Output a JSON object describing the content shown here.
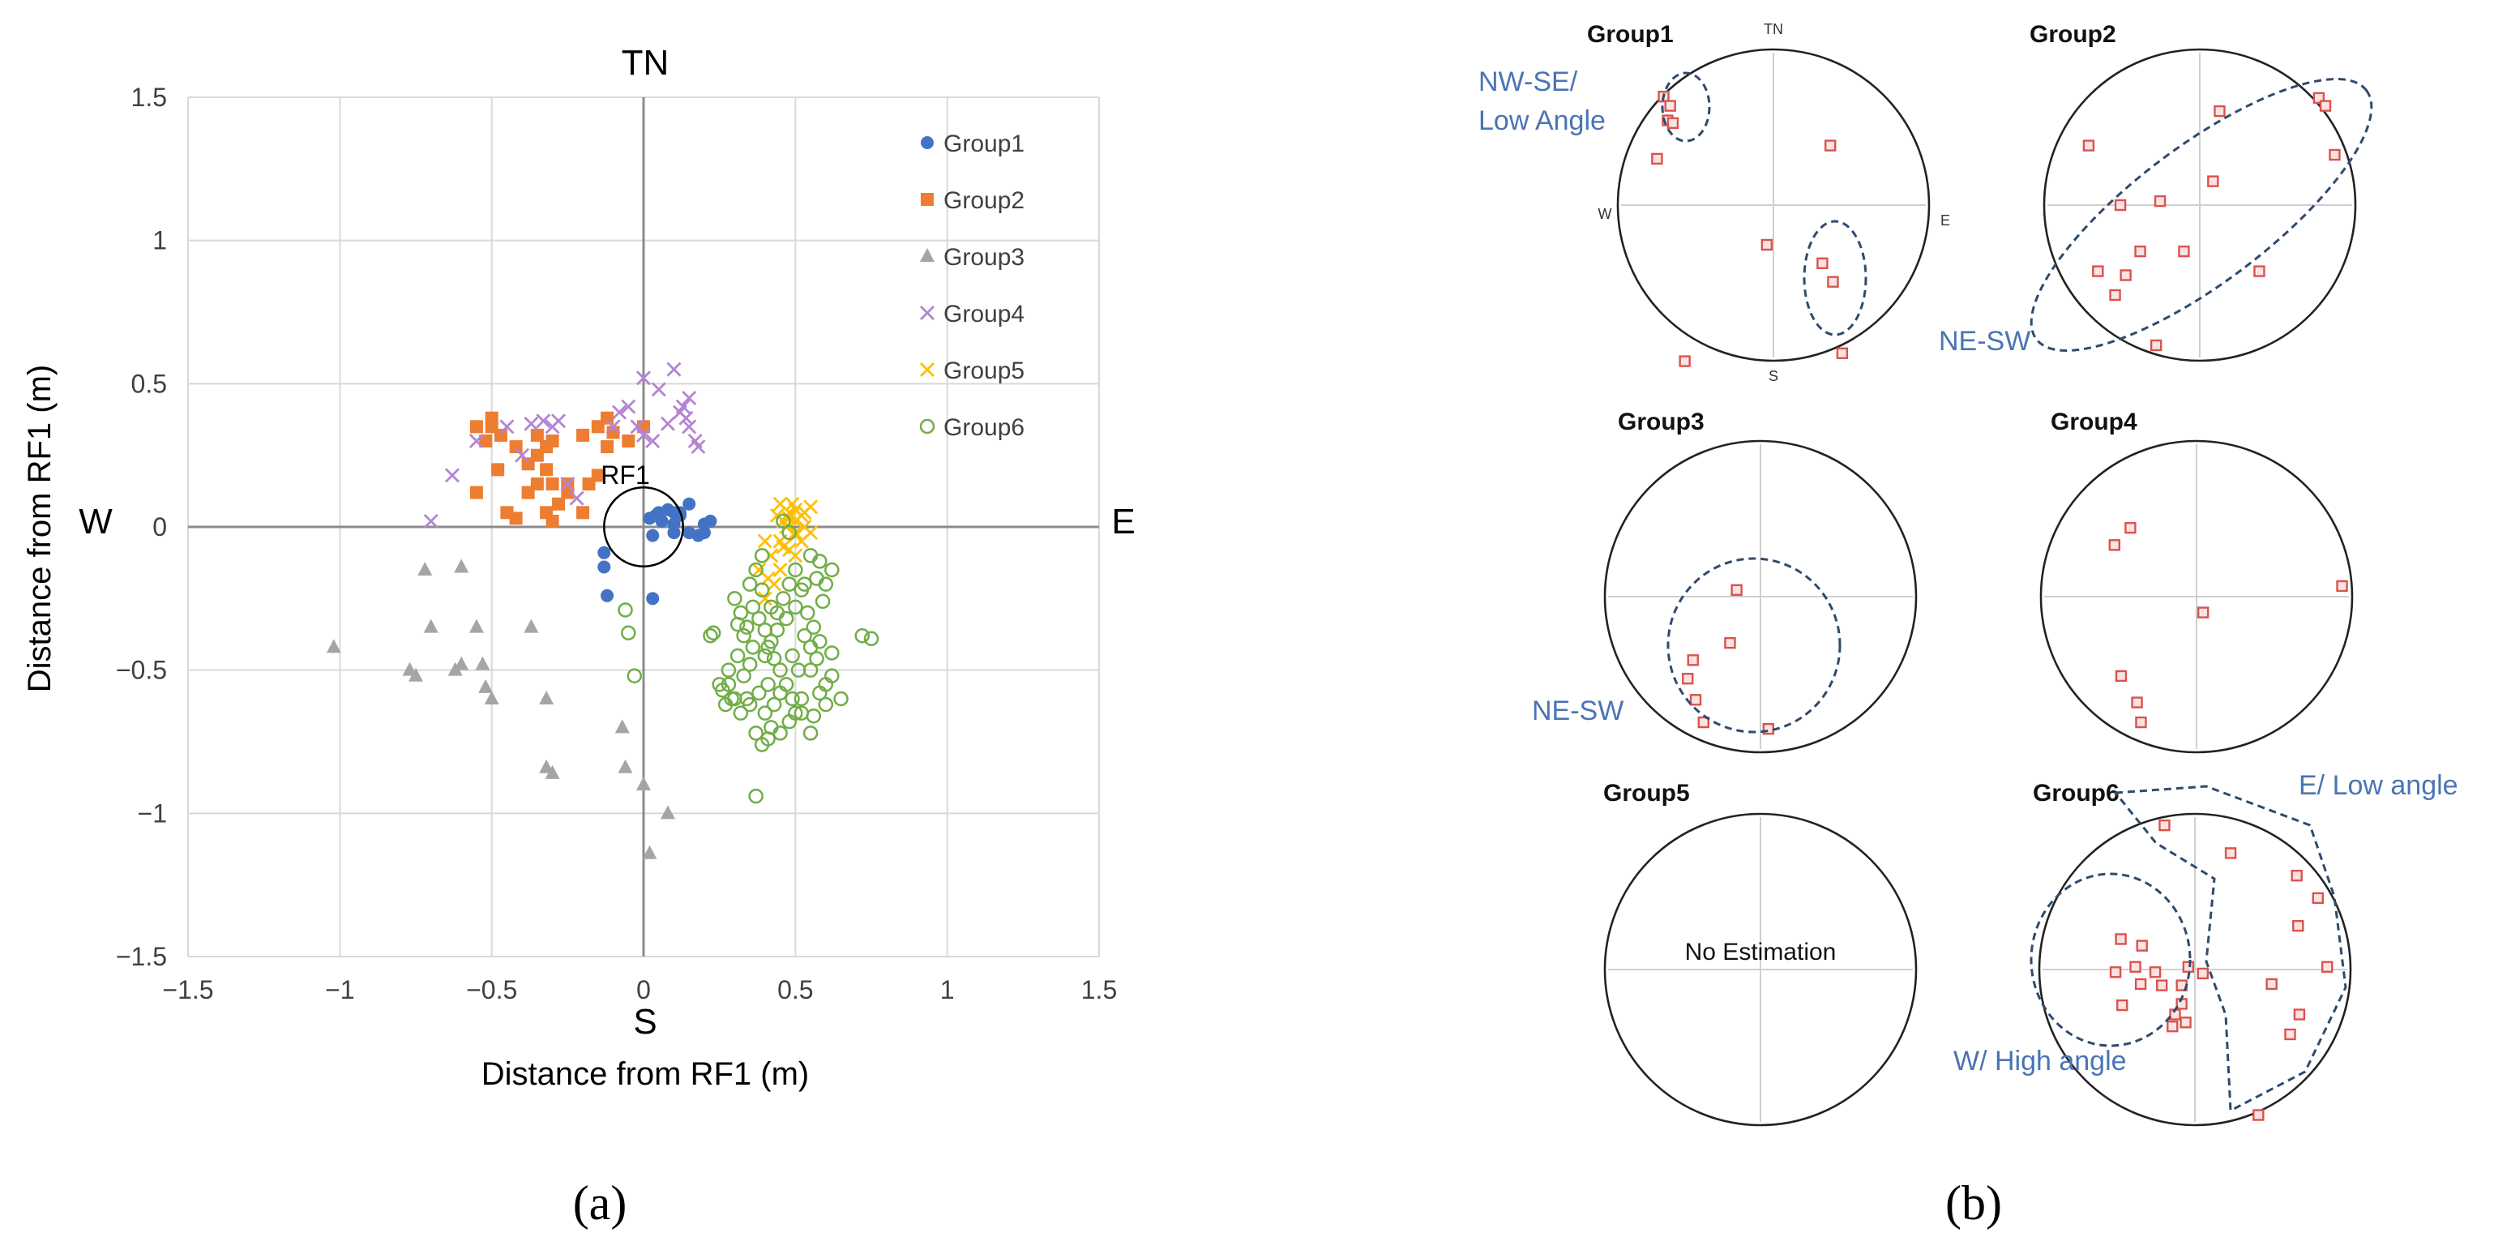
{
  "panel_a": {
    "caption": "(a)",
    "directions": {
      "north": "TN",
      "south": "S",
      "west": "W",
      "east": "E"
    },
    "center_label": "RF1"
  },
  "panel_b": {
    "caption": "(b)",
    "small_north": "TN",
    "small_south": "S",
    "small_west": "W",
    "small_east": "E",
    "titles": [
      "Group1",
      "Group2",
      "Group3",
      "Group4",
      "Group5",
      "Group6"
    ],
    "annotations": {
      "g1_line1": "NW-SE/",
      "g1_line2": "Low Angle",
      "g2": "NE-SW",
      "g3": "NE-SW",
      "g6_east": "E/ Low angle",
      "g6_west": "W/ High angle"
    },
    "no_estimation": "No Estimation",
    "point_color": "#d9534f",
    "stereonets": [
      {
        "points": [
          [
            -0.83,
            0.82
          ],
          [
            -0.78,
            0.75
          ],
          [
            -0.8,
            0.64
          ],
          [
            -0.76,
            0.62
          ],
          [
            -0.88,
            0.35
          ],
          [
            0.43,
            0.45
          ],
          [
            -0.05,
            -0.3
          ],
          [
            0.37,
            -0.44
          ],
          [
            0.45,
            -0.58
          ],
          [
            0.52,
            -1.12
          ],
          [
            -0.67,
            -1.18
          ]
        ]
      },
      {
        "points": [
          [
            -0.84,
            0.45
          ],
          [
            -0.6,
            0.0
          ],
          [
            -0.45,
            -0.35
          ],
          [
            -0.56,
            -0.53
          ],
          [
            -0.64,
            -0.68
          ],
          [
            -0.77,
            -0.5
          ],
          [
            -0.3,
            0.03
          ],
          [
            0.15,
            0.71
          ],
          [
            0.1,
            0.18
          ],
          [
            -0.12,
            -0.35
          ],
          [
            0.45,
            -0.5
          ],
          [
            0.9,
            0.81
          ],
          [
            0.95,
            0.75
          ],
          [
            1.02,
            0.38
          ],
          [
            -0.33,
            -1.06
          ]
        ]
      },
      {
        "points": [
          [
            -0.18,
            0.05
          ],
          [
            -0.23,
            -0.35
          ],
          [
            -0.51,
            -0.48
          ],
          [
            -0.55,
            -0.62
          ],
          [
            -0.49,
            -0.78
          ],
          [
            -0.43,
            -0.95
          ],
          [
            0.06,
            -1.0
          ]
        ]
      },
      {
        "points": [
          [
            -0.5,
            0.52
          ],
          [
            -0.62,
            0.39
          ],
          [
            0.05,
            -0.12
          ],
          [
            1.1,
            0.08
          ],
          [
            -0.57,
            -0.6
          ],
          [
            -0.45,
            -0.8
          ],
          [
            -0.42,
            -0.95
          ]
        ]
      },
      {
        "points": []
      },
      {
        "points": [
          [
            -0.23,
            1.09
          ],
          [
            0.27,
            0.88
          ],
          [
            0.77,
            0.71
          ],
          [
            0.93,
            0.54
          ],
          [
            0.78,
            0.33
          ],
          [
            1.0,
            0.02
          ],
          [
            0.58,
            -0.11
          ],
          [
            0.79,
            -0.34
          ],
          [
            0.72,
            -0.49
          ],
          [
            -0.56,
            0.23
          ],
          [
            -0.4,
            0.18
          ],
          [
            -0.45,
            0.02
          ],
          [
            -0.3,
            -0.02
          ],
          [
            -0.41,
            -0.11
          ],
          [
            -0.25,
            -0.12
          ],
          [
            -0.1,
            -0.12
          ],
          [
            -0.1,
            -0.26
          ],
          [
            -0.15,
            -0.34
          ],
          [
            -0.07,
            -0.4
          ],
          [
            -0.17,
            -0.43
          ],
          [
            -0.6,
            -0.02
          ],
          [
            -0.55,
            -0.27
          ],
          [
            0.06,
            -0.03
          ],
          [
            -0.05,
            0.02
          ],
          [
            0.48,
            -1.1
          ]
        ]
      }
    ]
  },
  "chart_data": {
    "type": "scatter",
    "title": "TN",
    "xlabel": "Distance from RF1 (m)",
    "ylabel": "Distance from RF1 (m)",
    "xlim": [
      -1.5,
      1.5
    ],
    "ylim": [
      -1.5,
      1.5
    ],
    "xticks": [
      "−1.5",
      "−1",
      "−0.5",
      "0",
      "0.5",
      "1",
      "1.5"
    ],
    "yticks": [
      "1.5",
      "1",
      "0.5",
      "0",
      "−0.5",
      "−1",
      "−1.5"
    ],
    "grid": true,
    "legend_position": "top-right",
    "rf1_circle_radius": 0.13,
    "series": [
      {
        "name": "Group1",
        "marker": "circle",
        "color": "#4472c4",
        "points": [
          [
            0.05,
            0.05
          ],
          [
            0.08,
            0.06
          ],
          [
            0.1,
            0.05
          ],
          [
            0.12,
            0.05
          ],
          [
            0.15,
            0.08
          ],
          [
            0.12,
            0.04
          ],
          [
            0.04,
            0.04
          ],
          [
            0.06,
            0.02
          ],
          [
            0.1,
            0.01
          ],
          [
            0.2,
            0.01
          ],
          [
            0.22,
            0.02
          ],
          [
            0.2,
            -0.02
          ],
          [
            0.18,
            -0.03
          ],
          [
            0.15,
            -0.02
          ],
          [
            0.1,
            -0.02
          ],
          [
            0.03,
            -0.03
          ],
          [
            -0.13,
            -0.09
          ],
          [
            -0.13,
            -0.14
          ],
          [
            -0.12,
            -0.24
          ],
          [
            0.03,
            -0.25
          ],
          [
            0.02,
            0.03
          ]
        ]
      },
      {
        "name": "Group2",
        "marker": "square",
        "color": "#ed7d31",
        "points": [
          [
            -0.55,
            0.35
          ],
          [
            -0.5,
            0.38
          ],
          [
            -0.5,
            0.35
          ],
          [
            -0.47,
            0.32
          ],
          [
            -0.52,
            0.3
          ],
          [
            -0.48,
            0.2
          ],
          [
            -0.42,
            0.28
          ],
          [
            -0.38,
            0.22
          ],
          [
            -0.35,
            0.25
          ],
          [
            -0.32,
            0.28
          ],
          [
            -0.3,
            0.3
          ],
          [
            -0.32,
            0.2
          ],
          [
            -0.35,
            0.15
          ],
          [
            -0.38,
            0.12
          ],
          [
            -0.3,
            0.15
          ],
          [
            -0.25,
            0.12
          ],
          [
            -0.28,
            0.08
          ],
          [
            -0.32,
            0.05
          ],
          [
            -0.3,
            0.02
          ],
          [
            -0.2,
            0.05
          ],
          [
            -0.18,
            0.15
          ],
          [
            -0.15,
            0.18
          ],
          [
            -0.2,
            0.32
          ],
          [
            -0.15,
            0.35
          ],
          [
            -0.12,
            0.38
          ],
          [
            -0.1,
            0.33
          ],
          [
            -0.05,
            0.3
          ],
          [
            0.0,
            0.35
          ],
          [
            -0.45,
            0.05
          ],
          [
            -0.42,
            0.03
          ],
          [
            -0.55,
            0.12
          ],
          [
            -0.12,
            0.28
          ],
          [
            -0.35,
            0.32
          ],
          [
            -0.25,
            0.15
          ]
        ]
      },
      {
        "name": "Group3",
        "marker": "triangle",
        "color": "#a5a5a5",
        "points": [
          [
            -1.02,
            -0.42
          ],
          [
            -0.77,
            -0.5
          ],
          [
            -0.75,
            -0.52
          ],
          [
            -0.72,
            -0.15
          ],
          [
            -0.7,
            -0.35
          ],
          [
            -0.62,
            -0.5
          ],
          [
            -0.6,
            -0.14
          ],
          [
            -0.6,
            -0.48
          ],
          [
            -0.55,
            -0.35
          ],
          [
            -0.53,
            -0.48
          ],
          [
            -0.52,
            -0.56
          ],
          [
            -0.5,
            -0.6
          ],
          [
            -0.37,
            -0.35
          ],
          [
            -0.32,
            -0.6
          ],
          [
            -0.32,
            -0.84
          ],
          [
            -0.3,
            -0.86
          ],
          [
            -0.07,
            -0.7
          ],
          [
            -0.06,
            -0.84
          ],
          [
            0.0,
            -0.9
          ],
          [
            0.08,
            -1.0
          ],
          [
            0.02,
            -1.14
          ]
        ]
      },
      {
        "name": "Group4",
        "marker": "x",
        "color": "#b484d4",
        "points": [
          [
            -0.7,
            0.02
          ],
          [
            -0.63,
            0.18
          ],
          [
            -0.55,
            0.3
          ],
          [
            -0.45,
            0.35
          ],
          [
            -0.4,
            0.25
          ],
          [
            -0.37,
            0.36
          ],
          [
            -0.33,
            0.37
          ],
          [
            -0.3,
            0.35
          ],
          [
            -0.28,
            0.37
          ],
          [
            -0.25,
            0.15
          ],
          [
            -0.22,
            0.1
          ],
          [
            -0.08,
            0.4
          ],
          [
            -0.05,
            0.42
          ],
          [
            0.0,
            0.52
          ],
          [
            0.05,
            0.48
          ],
          [
            0.0,
            0.32
          ],
          [
            0.1,
            0.55
          ],
          [
            0.12,
            0.4
          ],
          [
            0.15,
            0.45
          ],
          [
            0.15,
            0.35
          ],
          [
            0.17,
            0.3
          ],
          [
            0.14,
            0.38
          ],
          [
            0.03,
            0.3
          ],
          [
            -0.02,
            0.35
          ],
          [
            0.18,
            0.28
          ],
          [
            0.13,
            0.42
          ],
          [
            0.08,
            0.36
          ],
          [
            -0.1,
            0.35
          ]
        ]
      },
      {
        "name": "Group5",
        "marker": "x",
        "color": "#ffc000",
        "points": [
          [
            0.45,
            0.08
          ],
          [
            0.48,
            0.05
          ],
          [
            0.5,
            0.02
          ],
          [
            0.52,
            0.04
          ],
          [
            0.55,
            0.07
          ],
          [
            0.53,
            0.0
          ],
          [
            0.5,
            -0.03
          ],
          [
            0.47,
            0.0
          ],
          [
            0.45,
            -0.05
          ],
          [
            0.48,
            -0.08
          ],
          [
            0.5,
            -0.1
          ],
          [
            0.45,
            -0.15
          ],
          [
            0.43,
            -0.2
          ],
          [
            0.4,
            -0.25
          ],
          [
            0.42,
            -0.1
          ],
          [
            0.4,
            -0.05
          ],
          [
            0.38,
            -0.15
          ],
          [
            0.55,
            -0.02
          ],
          [
            0.5,
            0.06
          ],
          [
            0.48,
            0.03
          ],
          [
            0.46,
            0.02
          ],
          [
            0.44,
            0.04
          ],
          [
            0.52,
            -0.05
          ],
          [
            0.49,
            0.08
          ],
          [
            0.53,
            0.05
          ],
          [
            0.41,
            -0.18
          ],
          [
            0.46,
            -0.07
          ],
          [
            0.5,
            -0.02
          ]
        ]
      },
      {
        "name": "Group6",
        "marker": "open-circle",
        "color": "#70ad47",
        "points": [
          [
            -0.06,
            -0.29
          ],
          [
            -0.05,
            -0.37
          ],
          [
            -0.03,
            -0.52
          ],
          [
            0.23,
            -0.37
          ],
          [
            0.22,
            -0.38
          ],
          [
            0.25,
            -0.55
          ],
          [
            0.28,
            -0.55
          ],
          [
            0.3,
            -0.6
          ],
          [
            0.32,
            -0.65
          ],
          [
            0.35,
            -0.62
          ],
          [
            0.38,
            -0.58
          ],
          [
            0.4,
            -0.65
          ],
          [
            0.42,
            -0.7
          ],
          [
            0.45,
            -0.72
          ],
          [
            0.48,
            -0.68
          ],
          [
            0.5,
            -0.65
          ],
          [
            0.52,
            -0.6
          ],
          [
            0.55,
            -0.72
          ],
          [
            0.58,
            -0.58
          ],
          [
            0.6,
            -0.55
          ],
          [
            0.62,
            -0.52
          ],
          [
            0.65,
            -0.6
          ],
          [
            0.72,
            -0.38
          ],
          [
            0.75,
            -0.39
          ],
          [
            0.3,
            -0.25
          ],
          [
            0.32,
            -0.3
          ],
          [
            0.34,
            -0.35
          ],
          [
            0.36,
            -0.28
          ],
          [
            0.38,
            -0.32
          ],
          [
            0.4,
            -0.36
          ],
          [
            0.42,
            -0.4
          ],
          [
            0.44,
            -0.3
          ],
          [
            0.46,
            -0.25
          ],
          [
            0.48,
            -0.2
          ],
          [
            0.5,
            -0.15
          ],
          [
            0.52,
            -0.22
          ],
          [
            0.54,
            -0.3
          ],
          [
            0.56,
            -0.35
          ],
          [
            0.58,
            -0.4
          ],
          [
            0.6,
            -0.2
          ],
          [
            0.62,
            -0.15
          ],
          [
            0.35,
            -0.2
          ],
          [
            0.37,
            -0.15
          ],
          [
            0.39,
            -0.1
          ],
          [
            0.41,
            -0.42
          ],
          [
            0.43,
            -0.46
          ],
          [
            0.45,
            -0.5
          ],
          [
            0.47,
            -0.55
          ],
          [
            0.49,
            -0.45
          ],
          [
            0.51,
            -0.5
          ],
          [
            0.53,
            -0.38
          ],
          [
            0.55,
            -0.42
          ],
          [
            0.57,
            -0.46
          ],
          [
            0.59,
            -0.26
          ],
          [
            0.35,
            -0.48
          ],
          [
            0.33,
            -0.52
          ],
          [
            0.31,
            -0.45
          ],
          [
            0.29,
            -0.6
          ],
          [
            0.27,
            -0.62
          ],
          [
            0.37,
            -0.72
          ],
          [
            0.39,
            -0.76
          ],
          [
            0.41,
            -0.74
          ],
          [
            0.43,
            -0.62
          ],
          [
            0.37,
            -0.94
          ],
          [
            0.52,
            -0.65
          ],
          [
            0.56,
            -0.66
          ],
          [
            0.6,
            -0.62
          ],
          [
            0.46,
            0.02
          ],
          [
            0.48,
            -0.02
          ],
          [
            0.55,
            -0.1
          ],
          [
            0.58,
            -0.12
          ],
          [
            0.33,
            -0.38
          ],
          [
            0.36,
            -0.42
          ],
          [
            0.4,
            -0.45
          ],
          [
            0.44,
            -0.36
          ],
          [
            0.47,
            -0.32
          ],
          [
            0.5,
            -0.28
          ],
          [
            0.53,
            -0.2
          ],
          [
            0.57,
            -0.18
          ],
          [
            0.34,
            -0.6
          ],
          [
            0.28,
            -0.5
          ],
          [
            0.45,
            -0.58
          ],
          [
            0.49,
            -0.6
          ],
          [
            0.41,
            -0.55
          ],
          [
            0.55,
            -0.5
          ],
          [
            0.62,
            -0.44
          ],
          [
            0.39,
            -0.22
          ],
          [
            0.42,
            -0.28
          ],
          [
            0.31,
            -0.34
          ],
          [
            0.26,
            -0.57
          ]
        ]
      }
    ]
  }
}
